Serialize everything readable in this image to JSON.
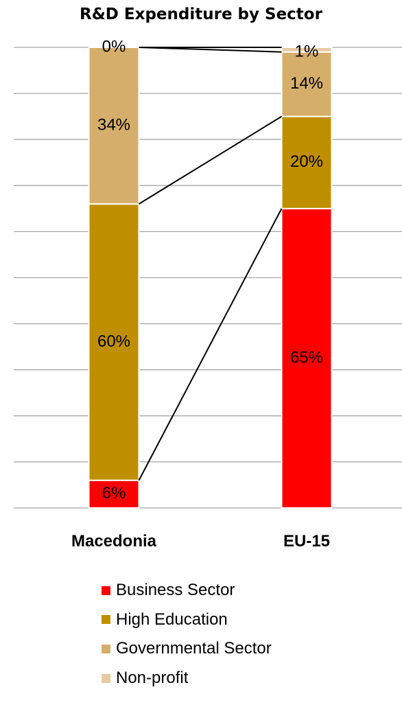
{
  "chart_data": {
    "type": "bar",
    "stacked": true,
    "title": "R&D Expenditure by Sector",
    "xlabel": "",
    "ylabel": "",
    "ylim": [
      0,
      100
    ],
    "grid": true,
    "connector_lines": true,
    "legend_position": "bottom",
    "categories": [
      "Macedonia",
      "EU-15"
    ],
    "series": [
      {
        "name": "Business Sector",
        "color": "#ff0000",
        "values": [
          6,
          65
        ],
        "labels": [
          "6%",
          "65%"
        ]
      },
      {
        "name": "High Education",
        "color": "#bf8f00",
        "values": [
          60,
          20
        ],
        "labels": [
          "60%",
          "20%"
        ]
      },
      {
        "name": "Governmental Sector",
        "color": "#d6ae6b",
        "values": [
          34,
          14
        ],
        "labels": [
          "34%",
          "14%"
        ]
      },
      {
        "name": "Non-profit",
        "color": "#e6cba4",
        "values": [
          0,
          1
        ],
        "labels": [
          "0%",
          "1%"
        ]
      }
    ]
  }
}
